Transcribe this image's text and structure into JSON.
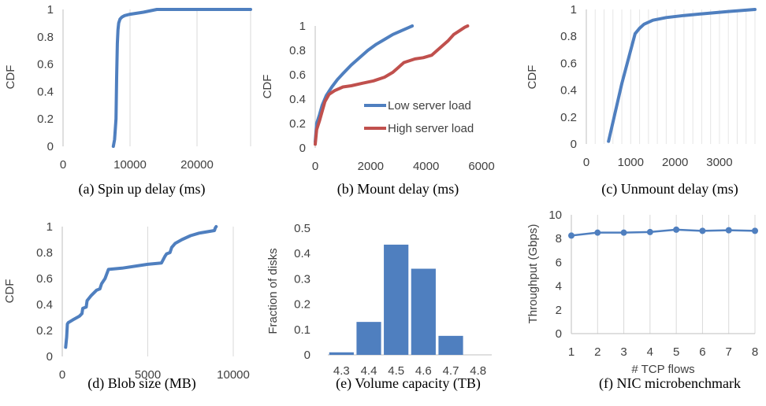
{
  "colors": {
    "blue": "#4F7FBF",
    "red": "#C0504D",
    "grid": "#D9D9D9",
    "axis": "#BFBFBF",
    "text": "#404040"
  },
  "chart_data": [
    {
      "id": "a",
      "type": "line",
      "caption": "(a)  Spin up delay (ms)",
      "ylabel": "CDF",
      "xlim": [
        0,
        28000
      ],
      "ylim": [
        0,
        1
      ],
      "xticks": [
        "0",
        "10000",
        "20000"
      ],
      "xtick_values": [
        0,
        10000,
        20000
      ],
      "yticks": [
        "0",
        "0.2",
        "0.4",
        "0.6",
        "0.8",
        "1"
      ],
      "ytick_values": [
        0,
        0.2,
        0.4,
        0.6,
        0.8,
        1
      ],
      "grid": "vertical",
      "series": [
        {
          "color": "blue",
          "x": [
            7500,
            7700,
            7900,
            8000,
            8100,
            8200,
            8300,
            8500,
            8800,
            9200,
            10000,
            12000,
            14000,
            20000,
            28000
          ],
          "y": [
            0,
            0.05,
            0.2,
            0.5,
            0.75,
            0.85,
            0.9,
            0.93,
            0.945,
            0.955,
            0.965,
            0.98,
            1.0,
            1.0,
            1.0
          ]
        }
      ]
    },
    {
      "id": "b",
      "type": "line",
      "caption": "(b)  Mount delay (ms)",
      "ylabel": "CDF",
      "xlim": [
        0,
        6000
      ],
      "ylim": [
        0,
        1
      ],
      "xticks": [
        "0",
        "2000",
        "4000",
        "6000"
      ],
      "xtick_values": [
        0,
        2000,
        4000,
        6000
      ],
      "yticks": [
        "0",
        "0.2",
        "0.4",
        "0.6",
        "0.8",
        "1"
      ],
      "ytick_values": [
        0,
        0.2,
        0.4,
        0.6,
        0.8,
        1
      ],
      "grid": "none",
      "legend": [
        {
          "label": "Low server load",
          "color": "blue"
        },
        {
          "label": "High server load",
          "color": "red"
        }
      ],
      "series": [
        {
          "name": "Low server load",
          "color": "blue",
          "x": [
            0,
            50,
            150,
            250,
            400,
            600,
            800,
            1000,
            1300,
            1600,
            1900,
            2200,
            2500,
            2800,
            3100,
            3400,
            3500
          ],
          "y": [
            0.05,
            0.2,
            0.27,
            0.35,
            0.43,
            0.5,
            0.56,
            0.61,
            0.68,
            0.74,
            0.8,
            0.85,
            0.89,
            0.93,
            0.96,
            0.99,
            1.0
          ]
        },
        {
          "name": "High server load",
          "color": "red",
          "x": [
            0,
            50,
            150,
            250,
            350,
            500,
            700,
            1000,
            1300,
            1700,
            2100,
            2500,
            2800,
            3000,
            3200,
            3600,
            3900,
            4200,
            4500,
            4800,
            5000,
            5200,
            5400,
            5500
          ],
          "y": [
            0.03,
            0.15,
            0.22,
            0.3,
            0.38,
            0.44,
            0.47,
            0.5,
            0.51,
            0.53,
            0.55,
            0.58,
            0.62,
            0.66,
            0.7,
            0.73,
            0.74,
            0.76,
            0.82,
            0.88,
            0.93,
            0.96,
            0.99,
            1.0
          ]
        }
      ]
    },
    {
      "id": "c",
      "type": "line",
      "caption": "(c)  Unmount delay (ms)",
      "ylabel": "CDF",
      "xlim": [
        0,
        3800
      ],
      "ylim": [
        0,
        1
      ],
      "xticks": [
        "0",
        "1000",
        "2000",
        "3000"
      ],
      "xtick_values": [
        0,
        1000,
        2000,
        3000
      ],
      "yticks": [
        "0",
        "0.2",
        "0.4",
        "0.6",
        "0.8",
        "1"
      ],
      "ytick_values": [
        0,
        0.2,
        0.4,
        0.6,
        0.8,
        1
      ],
      "grid": "vertical-fine",
      "series": [
        {
          "color": "blue",
          "x": [
            500,
            800,
            1100,
            1200,
            1300,
            1500,
            1800,
            2200,
            2700,
            3200,
            3600,
            3800
          ],
          "y": [
            0.02,
            0.45,
            0.82,
            0.86,
            0.89,
            0.92,
            0.94,
            0.955,
            0.97,
            0.985,
            0.995,
            1.0
          ]
        }
      ]
    },
    {
      "id": "d",
      "type": "line",
      "caption": "(d)  Blob size (MB)",
      "ylabel": "CDF",
      "xlim": [
        0,
        10000
      ],
      "ylim": [
        0,
        1
      ],
      "xticks": [
        "0",
        "5000",
        "10000"
      ],
      "xtick_values": [
        0,
        5000,
        10000
      ],
      "yticks": [
        "0",
        "0.2",
        "0.4",
        "0.6",
        "0.8",
        "1"
      ],
      "ytick_values": [
        0,
        0.2,
        0.4,
        0.6,
        0.8,
        1
      ],
      "grid": "vertical",
      "series": [
        {
          "color": "blue",
          "x": [
            200,
            260,
            300,
            350,
            600,
            1000,
            1150,
            1200,
            1400,
            1450,
            1700,
            2000,
            2200,
            2300,
            2500,
            2700,
            3500,
            4500,
            5000,
            5800,
            6000,
            6100,
            6300,
            6400,
            6600,
            7000,
            7500,
            8000,
            8900,
            8950,
            9000
          ],
          "y": [
            0.07,
            0.15,
            0.25,
            0.26,
            0.28,
            0.31,
            0.33,
            0.37,
            0.38,
            0.43,
            0.47,
            0.51,
            0.52,
            0.56,
            0.6,
            0.67,
            0.68,
            0.7,
            0.71,
            0.72,
            0.77,
            0.79,
            0.8,
            0.84,
            0.87,
            0.9,
            0.93,
            0.95,
            0.97,
            0.99,
            1.0
          ]
        }
      ]
    },
    {
      "id": "e",
      "type": "bar",
      "caption": "(e)  Volume capacity (TB)",
      "ylabel": "Fraction of disks",
      "categories": [
        "4.3",
        "4.4",
        "4.5",
        "4.6",
        "4.7",
        "4.8"
      ],
      "values": [
        0.01,
        0.13,
        0.435,
        0.34,
        0.075,
        0
      ],
      "ylim": [
        0,
        0.5
      ],
      "yticks": [
        "0",
        "0.1",
        "0.2",
        "0.3",
        "0.4",
        "0.5"
      ],
      "ytick_values": [
        0,
        0.1,
        0.2,
        0.3,
        0.4,
        0.5
      ],
      "color": "blue"
    },
    {
      "id": "f",
      "type": "line",
      "caption": "(f)  NIC microbenchmark",
      "ylabel": "Throughput (Gbps)",
      "xlabel": "# TCP flows",
      "xlim": [
        1,
        8
      ],
      "ylim": [
        0,
        10
      ],
      "xticks": [
        "1",
        "2",
        "3",
        "4",
        "5",
        "6",
        "7",
        "8"
      ],
      "xtick_values": [
        1,
        2,
        3,
        4,
        5,
        6,
        7,
        8
      ],
      "yticks": [
        "0",
        "2",
        "4",
        "6",
        "8",
        "10"
      ],
      "ytick_values": [
        0,
        2,
        4,
        6,
        8,
        10
      ],
      "grid": "vertical",
      "markers": true,
      "series": [
        {
          "color": "blue",
          "x": [
            1,
            2,
            3,
            4,
            5,
            6,
            7,
            8
          ],
          "y": [
            8.25,
            8.5,
            8.5,
            8.55,
            8.75,
            8.65,
            8.7,
            8.65
          ]
        }
      ]
    }
  ]
}
